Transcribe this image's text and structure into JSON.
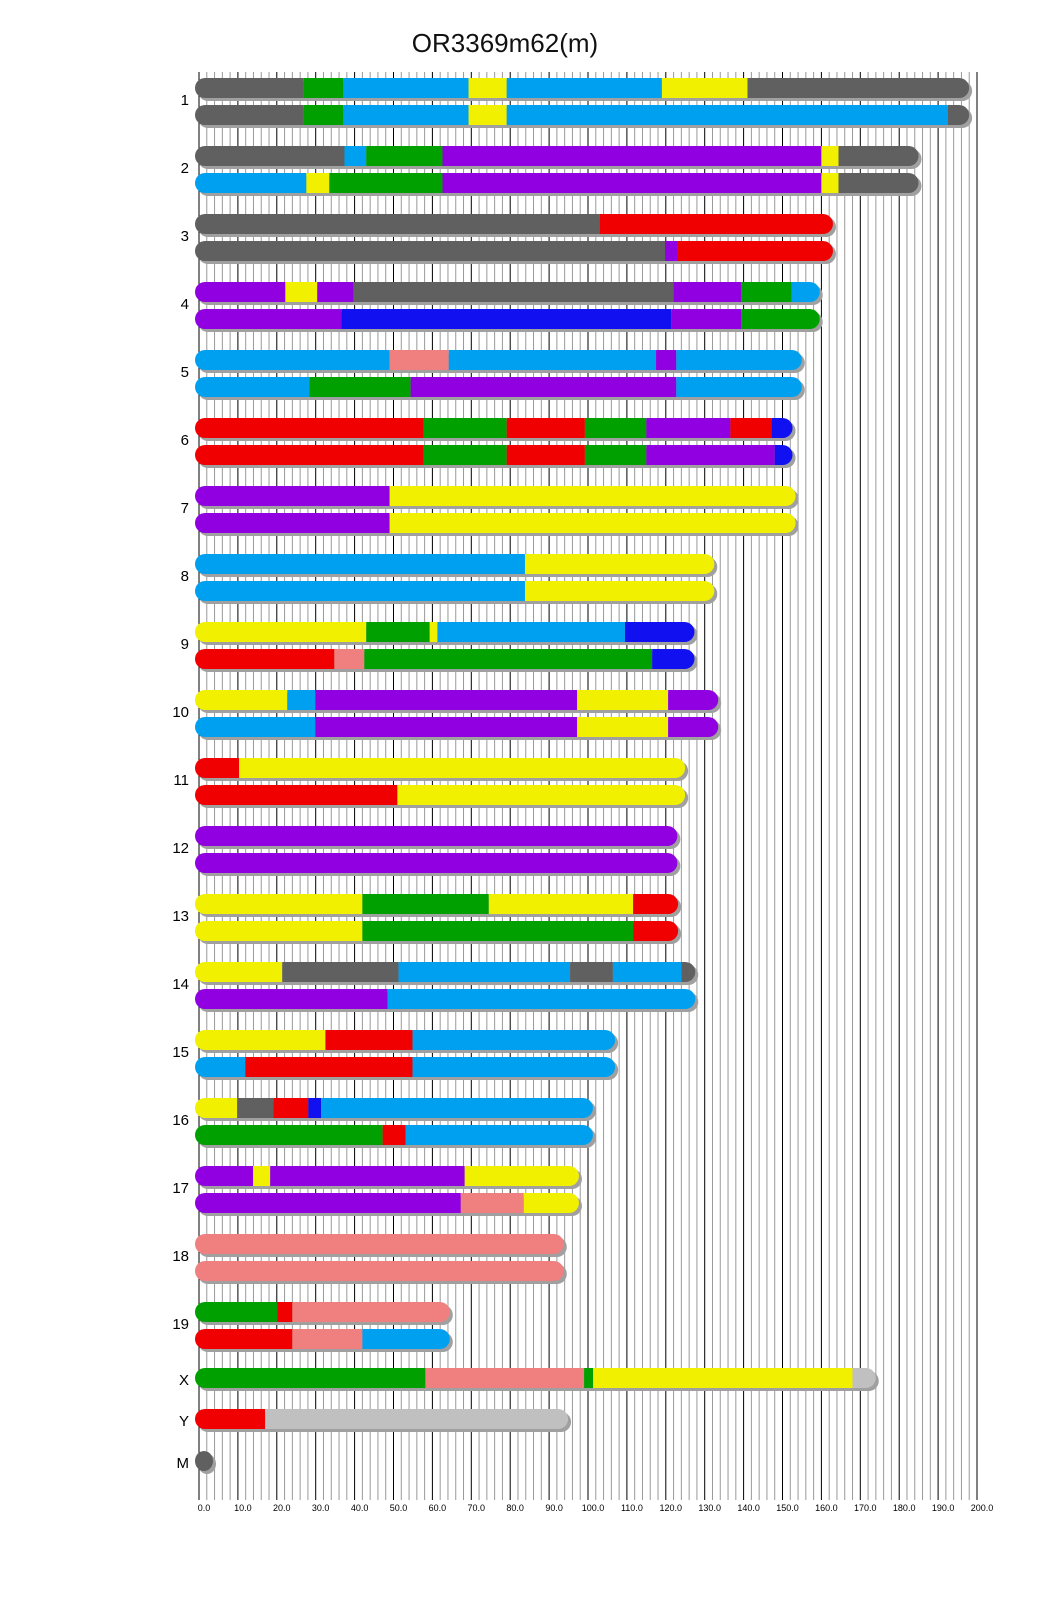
{
  "chart_data": {
    "type": "chromosome-painting",
    "title": "OR3369m62(m)",
    "xlim": [
      0,
      200
    ],
    "xticks": [
      0,
      10,
      20,
      30,
      40,
      50,
      60,
      70,
      80,
      90,
      100,
      110,
      120,
      130,
      140,
      150,
      160,
      170,
      180,
      190,
      200
    ],
    "colors": {
      "gray": "#606060",
      "green": "#00a000",
      "blue": "#00a0f0",
      "yellow": "#f0f000",
      "purple": "#9000e0",
      "red": "#f00000",
      "darkblue": "#1010f0",
      "salmon": "#f08080",
      "lightgray": "#c0c0c0"
    },
    "chromosomes": [
      {
        "name": "1",
        "haplotypes": [
          [
            [
              26.8,
              "gray"
            ],
            [
              37.1,
              "green"
            ],
            [
              69.3,
              "blue"
            ],
            [
              79.1,
              "yellow"
            ],
            [
              119,
              "blue"
            ],
            [
              141,
              "yellow"
            ],
            [
              199,
              "gray"
            ]
          ],
          [
            [
              26.8,
              "gray"
            ],
            [
              37.1,
              "green"
            ],
            [
              69.3,
              "blue"
            ],
            [
              79.1,
              "yellow"
            ],
            [
              192.5,
              "blue"
            ],
            [
              199,
              "gray"
            ]
          ]
        ]
      },
      {
        "name": "2",
        "haplotypes": [
          [
            [
              37.4,
              "gray"
            ],
            [
              43,
              "blue"
            ],
            [
              62.6,
              "green"
            ],
            [
              160,
              "purple"
            ],
            [
              164.4,
              "yellow"
            ],
            [
              186,
              "gray"
            ]
          ],
          [
            [
              27.6,
              "blue"
            ],
            [
              33.5,
              "yellow"
            ],
            [
              62.6,
              "green"
            ],
            [
              160,
              "purple"
            ],
            [
              164.4,
              "yellow"
            ],
            [
              186,
              "gray"
            ]
          ]
        ]
      },
      {
        "name": "3",
        "haplotypes": [
          [
            [
              103,
              "gray"
            ],
            [
              164,
              "red"
            ]
          ],
          [
            [
              119.8,
              "gray"
            ],
            [
              123,
              "purple"
            ],
            [
              164,
              "red"
            ]
          ]
        ]
      },
      {
        "name": "4",
        "haplotypes": [
          [
            [
              22.2,
              "purple"
            ],
            [
              30.4,
              "yellow"
            ],
            [
              39.7,
              "purple"
            ],
            [
              122,
              "gray"
            ],
            [
              139.4,
              "purple"
            ],
            [
              152.3,
              "green"
            ],
            [
              160.6,
              "blue"
            ]
          ],
          [
            [
              36.6,
              "purple"
            ],
            [
              121.4,
              "darkblue"
            ],
            [
              139.4,
              "purple"
            ],
            [
              160.6,
              "green"
            ]
          ]
        ]
      },
      {
        "name": "5",
        "haplotypes": [
          [
            [
              49,
              "blue"
            ],
            [
              64.2,
              "salmon"
            ],
            [
              117.5,
              "blue"
            ],
            [
              122.7,
              "purple"
            ],
            [
              156,
              "blue"
            ]
          ],
          [
            [
              28.4,
              "blue"
            ],
            [
              54.4,
              "green"
            ],
            [
              122.7,
              "purple"
            ],
            [
              156,
              "blue"
            ]
          ]
        ]
      },
      {
        "name": "6",
        "haplotypes": [
          [
            [
              57.7,
              "red"
            ],
            [
              79.1,
              "green"
            ],
            [
              99.2,
              "red"
            ],
            [
              115,
              "green"
            ],
            [
              136.6,
              "purple"
            ],
            [
              147.2,
              "red"
            ],
            [
              153.6,
              "darkblue"
            ]
          ],
          [
            [
              57.7,
              "red"
            ],
            [
              79.1,
              "green"
            ],
            [
              99.2,
              "red"
            ],
            [
              115,
              "green"
            ],
            [
              148,
              "purple"
            ],
            [
              153.6,
              "darkblue"
            ]
          ]
        ]
      },
      {
        "name": "7",
        "haplotypes": [
          [
            [
              49,
              "purple"
            ],
            [
              154.4,
              "yellow"
            ]
          ],
          [
            [
              49,
              "purple"
            ],
            [
              154.4,
              "yellow"
            ]
          ]
        ]
      },
      {
        "name": "8",
        "haplotypes": [
          [
            [
              83.8,
              "blue"
            ],
            [
              133.5,
              "yellow"
            ]
          ],
          [
            [
              83.8,
              "blue"
            ],
            [
              133.5,
              "yellow"
            ]
          ]
        ]
      },
      {
        "name": "9",
        "haplotypes": [
          [
            [
              43,
              "yellow"
            ],
            [
              59.3,
              "green"
            ],
            [
              61.3,
              "yellow"
            ],
            [
              109.5,
              "blue"
            ],
            [
              128.4,
              "darkblue"
            ]
          ],
          [
            [
              34.8,
              "red"
            ],
            [
              42.5,
              "salmon"
            ],
            [
              116.5,
              "green"
            ],
            [
              128.4,
              "darkblue"
            ]
          ]
        ]
      },
      {
        "name": "10",
        "haplotypes": [
          [
            [
              22.7,
              "yellow"
            ],
            [
              29.9,
              "blue"
            ],
            [
              97.2,
              "purple"
            ],
            [
              120.6,
              "yellow"
            ],
            [
              134.5,
              "purple"
            ]
          ],
          [
            [
              29.9,
              "blue"
            ],
            [
              97.2,
              "purple"
            ],
            [
              120.6,
              "yellow"
            ],
            [
              134.5,
              "purple"
            ]
          ]
        ]
      },
      {
        "name": "11",
        "haplotypes": [
          [
            [
              10.3,
              "red"
            ],
            [
              126,
              "yellow"
            ]
          ],
          [
            [
              51,
              "red"
            ],
            [
              126,
              "yellow"
            ]
          ]
        ]
      },
      {
        "name": "12",
        "haplotypes": [
          [
            [
              124,
              "purple"
            ]
          ],
          [
            [
              124,
              "purple"
            ]
          ]
        ]
      },
      {
        "name": "13",
        "haplotypes": [
          [
            [
              42,
              "yellow"
            ],
            [
              74.5,
              "green"
            ],
            [
              111.6,
              "yellow"
            ],
            [
              124.2,
              "red"
            ]
          ],
          [
            [
              42,
              "yellow"
            ],
            [
              111.6,
              "green"
            ],
            [
              124.2,
              "red"
            ]
          ]
        ]
      },
      {
        "name": "14",
        "haplotypes": [
          [
            [
              21.4,
              "yellow"
            ],
            [
              51.3,
              "gray"
            ],
            [
              95.4,
              "blue"
            ],
            [
              106.4,
              "gray"
            ],
            [
              124,
              "blue"
            ],
            [
              128.6,
              "gray"
            ]
          ],
          [
            [
              48.5,
              "purple"
            ],
            [
              128.6,
              "blue"
            ]
          ]
        ]
      },
      {
        "name": "15",
        "haplotypes": [
          [
            [
              32.5,
              "yellow"
            ],
            [
              54.9,
              "red"
            ],
            [
              108,
              "blue"
            ]
          ],
          [
            [
              11.9,
              "blue"
            ],
            [
              54.9,
              "red"
            ],
            [
              108,
              "blue"
            ]
          ]
        ]
      },
      {
        "name": "16",
        "haplotypes": [
          [
            [
              9.8,
              "yellow"
            ],
            [
              19.1,
              "gray"
            ],
            [
              28.1,
              "red"
            ],
            [
              31.4,
              "darkblue"
            ],
            [
              102.3,
              "blue"
            ]
          ],
          [
            [
              47.2,
              "green"
            ],
            [
              53.1,
              "red"
            ],
            [
              102.3,
              "blue"
            ]
          ]
        ]
      },
      {
        "name": "17",
        "haplotypes": [
          [
            [
              13.9,
              "purple"
            ],
            [
              18.3,
              "yellow"
            ],
            [
              68.3,
              "purple"
            ],
            [
              98.7,
              "yellow"
            ]
          ],
          [
            [
              67.3,
              "purple"
            ],
            [
              83.5,
              "salmon"
            ],
            [
              98.7,
              "yellow"
            ]
          ]
        ]
      },
      {
        "name": "18",
        "haplotypes": [
          [
            [
              94.8,
              "salmon"
            ]
          ],
          [
            [
              94.8,
              "salmon"
            ]
          ]
        ]
      },
      {
        "name": "19",
        "haplotypes": [
          [
            [
              20.1,
              "green"
            ],
            [
              24,
              "red"
            ],
            [
              65.5,
              "salmon"
            ]
          ],
          [
            [
              24,
              "red"
            ],
            [
              42,
              "salmon"
            ],
            [
              65.5,
              "blue"
            ]
          ]
        ]
      },
      {
        "name": "X",
        "haplotypes": [
          [
            [
              58.2,
              "green"
            ],
            [
              99,
              "salmon"
            ],
            [
              101.3,
              "green"
            ],
            [
              168,
              "yellow"
            ],
            [
              175,
              "lightgray"
            ]
          ]
        ]
      },
      {
        "name": "Y",
        "haplotypes": [
          [
            [
              17,
              "red"
            ],
            [
              95.9,
              "lightgray"
            ]
          ]
        ]
      },
      {
        "name": "M",
        "haplotypes": [
          [
            [
              2.5,
              "gray"
            ]
          ]
        ]
      }
    ]
  }
}
